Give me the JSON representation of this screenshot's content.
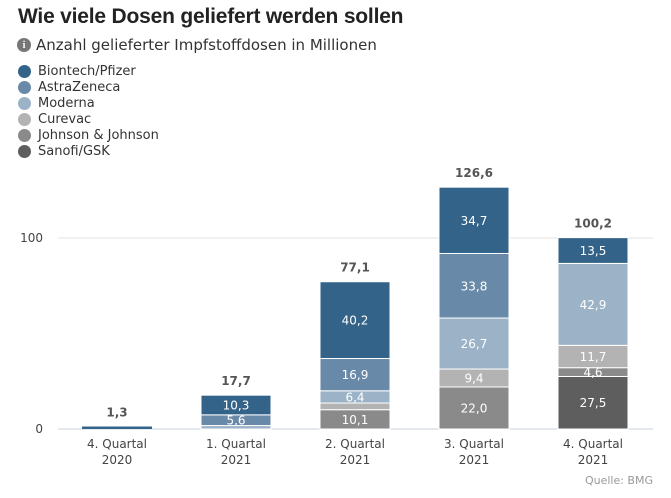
{
  "title": "Wie viele Dosen geliefert werden sollen",
  "subtitle": "Anzahl gelieferter Impfstoffdosen in Millionen",
  "source": "Quelle: BMG",
  "chart_data": {
    "type": "bar",
    "stacked": true,
    "title": "Wie viele Dosen geliefert werden sollen",
    "subtitle": "Anzahl gelieferter Impfstoffdosen in Millionen",
    "xlabel": "",
    "ylabel": "",
    "ylim": [
      0,
      130
    ],
    "yticks": [
      0,
      100
    ],
    "grid": true,
    "legend_position": "top-left",
    "categories": [
      [
        "4. Quartal",
        "2020"
      ],
      [
        "1. Quartal",
        "2021"
      ],
      [
        "2. Quartal",
        "2021"
      ],
      [
        "3. Quartal",
        "2021"
      ],
      [
        "4. Quartal",
        "2021"
      ]
    ],
    "totals": [
      1.3,
      17.7,
      77.1,
      126.6,
      100.2
    ],
    "total_labels": [
      "1,3",
      "17,7",
      "77,1",
      "126,6",
      "100,2"
    ],
    "series": [
      {
        "name": "Sanofi/GSK",
        "color": "#5e5e5e",
        "values": [
          0,
          0,
          0,
          0,
          27.5
        ],
        "labels": [
          "",
          "",
          "",
          "",
          "27,5"
        ]
      },
      {
        "name": "Johnson & Johnson",
        "color": "#8a8a8a",
        "values": [
          0,
          0,
          10.1,
          22.0,
          4.6
        ],
        "labels": [
          "",
          "",
          "10,1",
          "22,0",
          "4,6"
        ]
      },
      {
        "name": "Curevac",
        "color": "#b3b3b3",
        "values": [
          0,
          0,
          3.5,
          9.4,
          11.7
        ],
        "labels": [
          "",
          "",
          "",
          "9,4",
          "11,7"
        ]
      },
      {
        "name": "Moderna",
        "color": "#9bb2c7",
        "values": [
          0,
          1.8,
          6.4,
          26.7,
          42.9
        ],
        "labels": [
          "",
          "",
          "6,4",
          "26,7",
          "42,9"
        ]
      },
      {
        "name": "AstraZeneca",
        "color": "#688aa8",
        "values": [
          0,
          5.6,
          16.9,
          33.8,
          0
        ],
        "labels": [
          "",
          "5,6",
          "16,9",
          "33,8",
          ""
        ]
      },
      {
        "name": "Biontech/Pfizer",
        "color": "#336388",
        "values": [
          1.3,
          10.3,
          40.2,
          34.7,
          13.5
        ],
        "labels": [
          "",
          "10,3",
          "40,2",
          "34,7",
          "13,5"
        ]
      }
    ]
  },
  "legend": [
    {
      "label": "Biontech/Pfizer",
      "color": "#336388"
    },
    {
      "label": "AstraZeneca",
      "color": "#688aa8"
    },
    {
      "label": "Moderna",
      "color": "#9bb2c7"
    },
    {
      "label": "Curevac",
      "color": "#b3b3b3"
    },
    {
      "label": "Johnson & Johnson",
      "color": "#8a8a8a"
    },
    {
      "label": "Sanofi/GSK",
      "color": "#5e5e5e"
    }
  ]
}
